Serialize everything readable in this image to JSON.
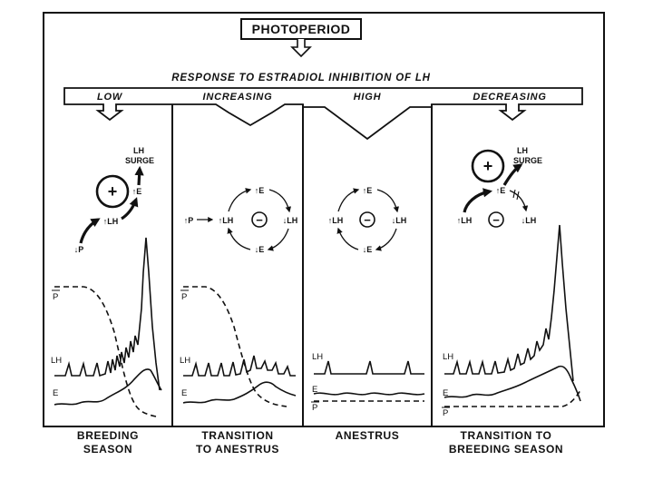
{
  "header": {
    "title": "PHOTOPERIOD"
  },
  "response": {
    "title": "RESPONSE TO ESTRADIOL INHIBITION OF LH",
    "levels": [
      "LOW",
      "INCREASING",
      "HIGH",
      "DECREASING"
    ]
  },
  "hormones": {
    "lh": "LH",
    "e": "E",
    "p": "P",
    "lh_surge_top": "LH",
    "lh_surge_bottom": "SURGE",
    "plus": "+",
    "minus": "−",
    "up_arrow": "↑",
    "e_up": "↑E",
    "e_down": "↓E",
    "lh_up": "↑LH",
    "lh_down": "↓LH",
    "p_up": "↑P",
    "p_down": "↓P"
  },
  "panels": [
    {
      "line1": "BREEDING",
      "line2": "SEASON"
    },
    {
      "line1": "TRANSITION",
      "line2": "TO ANESTRUS"
    },
    {
      "line1": "ANESTRUS",
      "line2": ""
    },
    {
      "line1": "TRANSITION TO",
      "line2": "BREEDING SEASON"
    }
  ]
}
